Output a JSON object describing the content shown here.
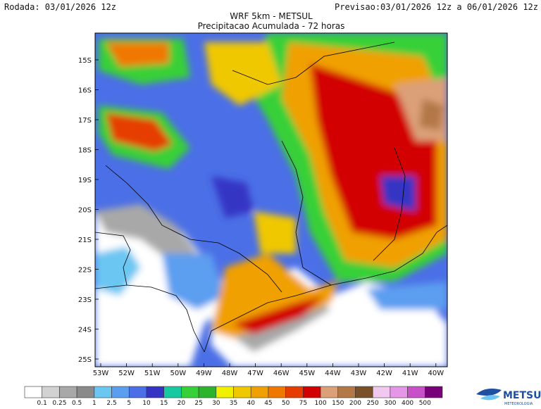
{
  "header": {
    "left": "Rodada: 03/01/2026 12z",
    "right": "Previsao:03/01/2026 12z a 06/01/2026 12z",
    "title": "WRF 5km - METSUL",
    "subtitle": "Precipitacao Acumulada - 72 horas"
  },
  "map": {
    "lat_labels": [
      "15S",
      "16S",
      "17S",
      "18S",
      "19S",
      "20S",
      "21S",
      "22S",
      "23S",
      "24S",
      "25S"
    ],
    "lon_labels": [
      "53W",
      "52W",
      "51W",
      "50W",
      "49W",
      "48W",
      "47W",
      "46W",
      "45W",
      "44W",
      "43W",
      "42W",
      "41W",
      "40W"
    ]
  },
  "legend": {
    "labels": [
      "0.1",
      "0.25",
      "0.5",
      "1",
      "2.5",
      "5",
      "10",
      "15",
      "20",
      "25",
      "30",
      "35",
      "40",
      "45",
      "50",
      "75",
      "100",
      "150",
      "200",
      "250",
      "300",
      "400",
      "500"
    ],
    "colors": [
      "#ffffff",
      "#d2d2d2",
      "#a8a8a8",
      "#8a8a8a",
      "#6cc6f2",
      "#5b9ef0",
      "#4b6fe6",
      "#3434c4",
      "#18c8a0",
      "#38d038",
      "#2cb42c",
      "#f0f000",
      "#f0c800",
      "#f0a000",
      "#f07800",
      "#e63c00",
      "#d20000",
      "#dca078",
      "#b47846",
      "#7a5028",
      "#f0c8f0",
      "#e696e6",
      "#c850c8",
      "#780078"
    ]
  },
  "logo": {
    "name": "METSUL",
    "tagline": "METEOROLOGIA"
  }
}
